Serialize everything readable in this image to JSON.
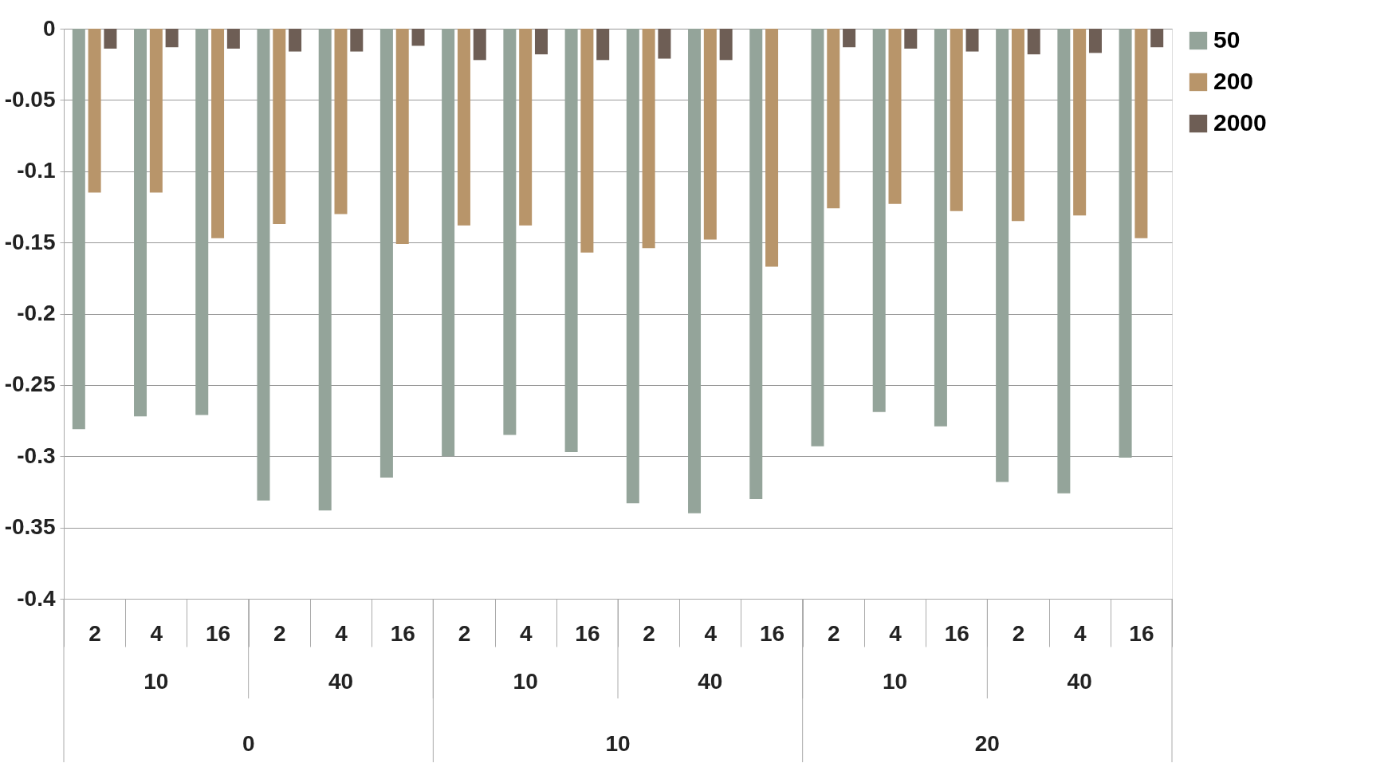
{
  "chart_data": {
    "type": "bar",
    "categories": [
      "2",
      "4",
      "16",
      "2",
      "4",
      "16",
      "2",
      "4",
      "16",
      "2",
      "4",
      "16",
      "2",
      "4",
      "16",
      "2",
      "4",
      "16"
    ],
    "series": [
      {
        "name": "50",
        "color": "#94a49a",
        "values": [
          -0.281,
          -0.272,
          -0.271,
          -0.331,
          -0.338,
          -0.315,
          -0.3,
          -0.285,
          -0.297,
          -0.333,
          -0.34,
          -0.33,
          -0.293,
          -0.269,
          -0.279,
          -0.318,
          -0.326,
          -0.301
        ]
      },
      {
        "name": "200",
        "color": "#b8956a",
        "values": [
          -0.115,
          -0.115,
          -0.147,
          -0.137,
          -0.13,
          -0.151,
          -0.138,
          -0.138,
          -0.157,
          -0.154,
          -0.148,
          -0.167,
          -0.126,
          -0.123,
          -0.128,
          -0.135,
          -0.131,
          -0.147
        ]
      },
      {
        "name": "2000",
        "color": "#6e5e55",
        "values": [
          -0.014,
          -0.013,
          -0.014,
          -0.016,
          -0.016,
          -0.012,
          -0.022,
          -0.018,
          -0.022,
          -0.021,
          -0.022,
          null,
          -0.013,
          -0.014,
          -0.016,
          -0.018,
          -0.017,
          -0.013
        ]
      }
    ],
    "annotations": [
      "10",
      "40",
      "10",
      "40",
      "10",
      "40",
      "0",
      "10",
      "20"
    ],
    "ylim": [
      -0.4,
      0
    ],
    "yticks": [
      0,
      -0.05,
      -0.1,
      -0.15,
      -0.2,
      -0.25,
      -0.3,
      -0.35,
      -0.4
    ],
    "grid": "y",
    "legend": "right"
  }
}
